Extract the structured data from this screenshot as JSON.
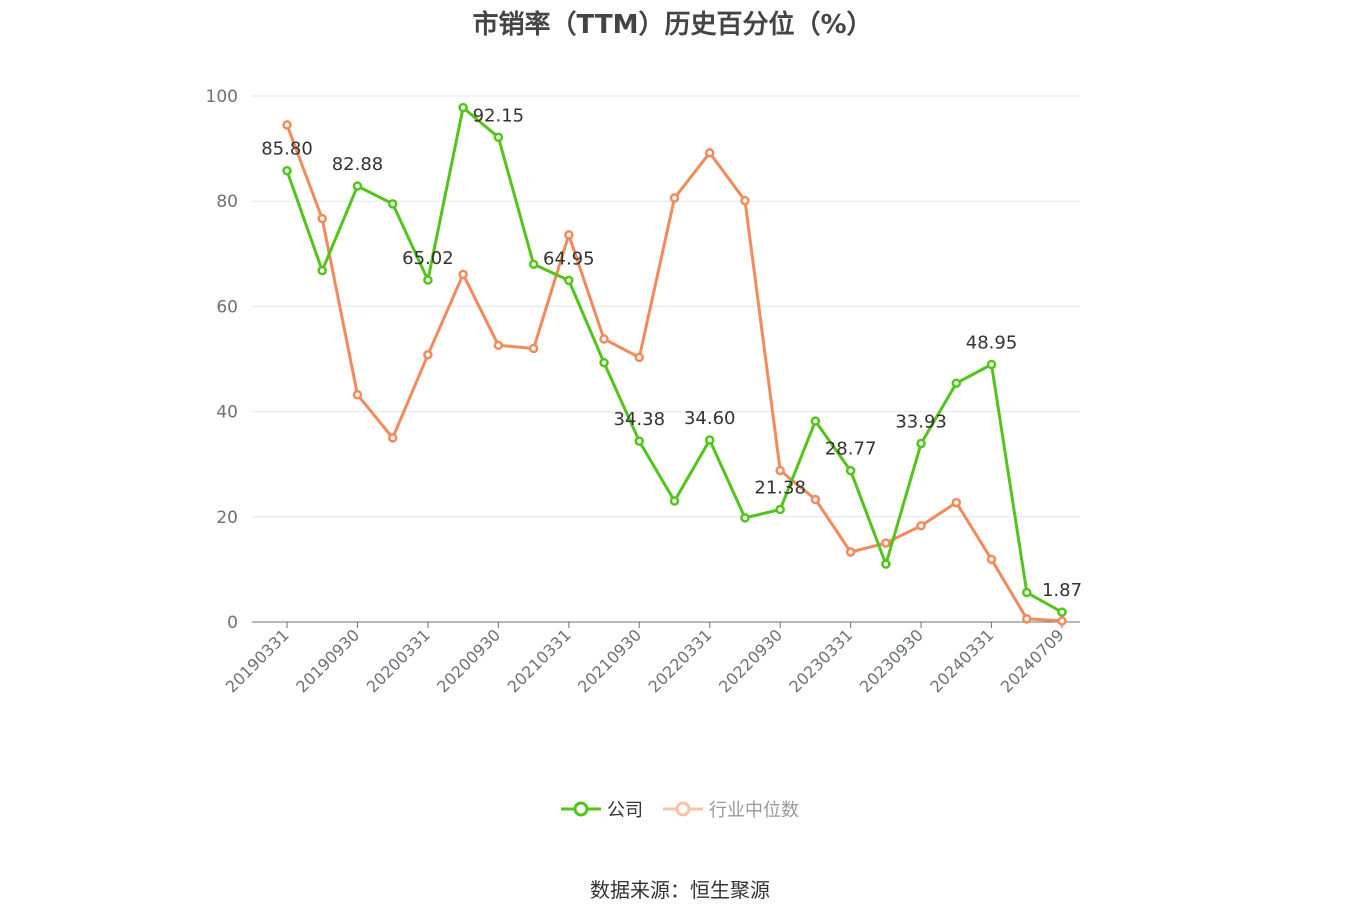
{
  "chart_data": {
    "type": "line",
    "title": "市销率（TTM）历史百分位（%）",
    "ylim": [
      0,
      100
    ],
    "y_ticks": [
      "0",
      "20",
      "40",
      "60",
      "80",
      "100"
    ],
    "x_tick_labels": [
      "20190331",
      "20190930",
      "20200331",
      "20200930",
      "20210331",
      "20210930",
      "20220331",
      "20220930",
      "20230331",
      "20230930",
      "20240331",
      "20240709"
    ],
    "x_tick_indices": [
      0,
      2,
      4,
      6,
      8,
      10,
      12,
      14,
      16,
      18,
      20,
      22
    ],
    "grid": true,
    "legend_position": "bottom",
    "series": [
      {
        "name": "公司",
        "color": "#52c41a",
        "values": [
          85.8,
          66.8,
          82.88,
          79.5,
          65.02,
          97.8,
          92.15,
          68.0,
          64.95,
          49.3,
          34.38,
          23.0,
          34.6,
          19.8,
          21.38,
          38.2,
          28.77,
          11.0,
          33.93,
          45.4,
          48.95,
          5.6,
          1.87
        ],
        "labels": [
          "85.80",
          "",
          "82.88",
          "",
          "65.02",
          "",
          "92.15",
          "",
          "64.95",
          "",
          "34.38",
          "",
          "34.60",
          "",
          "21.38",
          "",
          "28.77",
          "",
          "33.93",
          "",
          "48.95",
          "",
          "1.87"
        ]
      },
      {
        "name": "行业中位数",
        "color": "#f28a5b",
        "values": [
          94.5,
          76.7,
          43.2,
          35.0,
          50.8,
          66.1,
          52.6,
          52.0,
          73.6,
          53.8,
          50.3,
          80.6,
          89.2,
          80.1,
          28.8,
          23.3,
          13.3,
          15.0,
          18.3,
          22.7,
          11.9,
          0.6,
          0.2
        ]
      }
    ]
  },
  "legend": {
    "company": "公司",
    "industry": "行业中位数"
  },
  "source": "数据来源：恒生聚源"
}
